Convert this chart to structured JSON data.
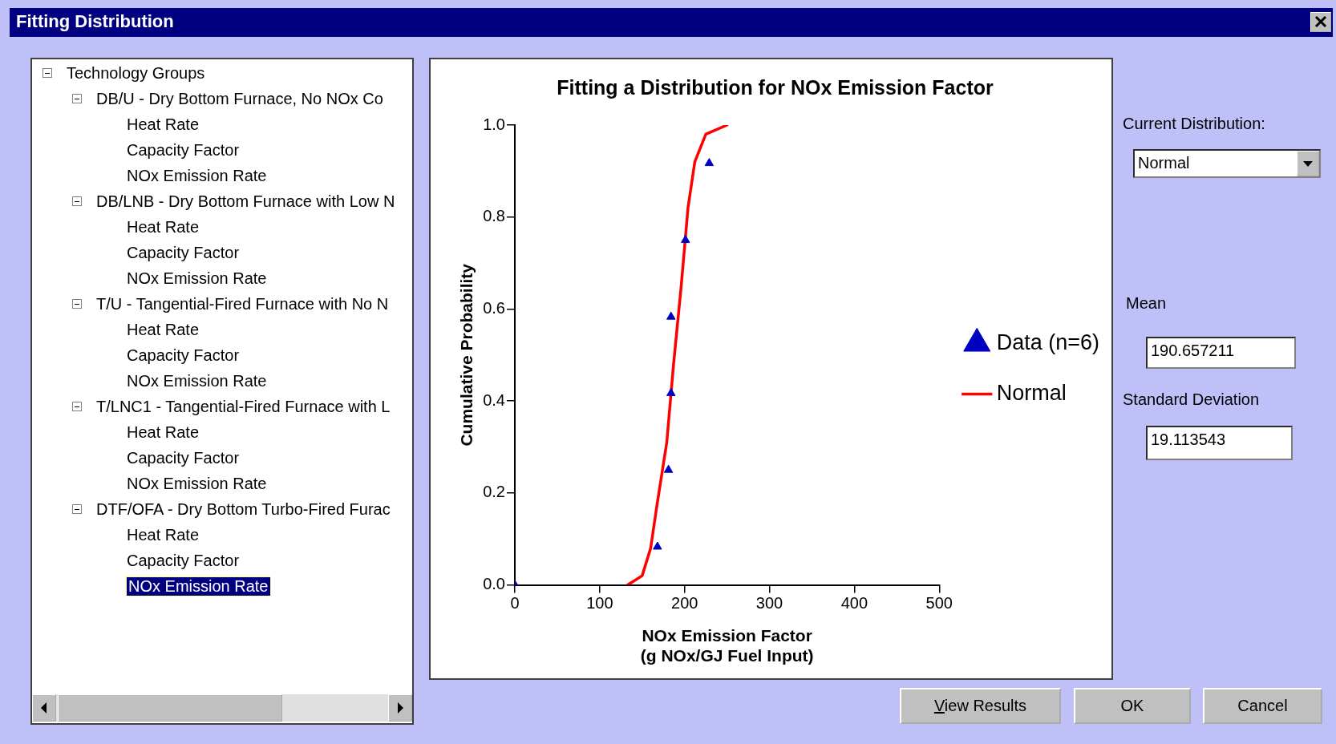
{
  "chart_data": {
    "type": "scatter",
    "title": "Fitting a Distribution for NOx Emission Factor",
    "xlabel": "NOx Emission Factor\n(g NOx/GJ Fuel Input)",
    "ylabel": "Cumulative Probability",
    "xlim": [
      0,
      500
    ],
    "xticks": [
      0,
      100,
      200,
      300,
      400,
      500
    ],
    "ylim": [
      0,
      1
    ],
    "yticks": [
      {
        "value": 0,
        "label": "0.0"
      },
      {
        "value": 0.2,
        "label": "0.2"
      },
      {
        "value": 0.4,
        "label": "0.4"
      },
      {
        "value": 0.6,
        "label": "0.6"
      },
      {
        "value": 0.8,
        "label": "0.8"
      },
      {
        "value": 1,
        "label": "1.0"
      }
    ],
    "grid": false,
    "legend": "right",
    "series": [
      {
        "name": "Data (n=6)",
        "type": "scatter",
        "color": "#0000c0",
        "marker": "triangle",
        "x": [
          0,
          168,
          181,
          184,
          184,
          201,
          229
        ],
        "values": [
          0,
          0.083,
          0.25,
          0.417,
          0.583,
          0.75,
          0.917
        ]
      },
      {
        "name": "Normal",
        "type": "line",
        "color": "#ff0000",
        "marker": "none",
        "x": [
          133,
          150,
          160,
          168,
          179,
          187,
          196,
          204,
          212,
          225,
          250
        ],
        "values": [
          0,
          0.02,
          0.08,
          0.18,
          0.31,
          0.48,
          0.65,
          0.82,
          0.92,
          0.98,
          1
        ]
      }
    ],
    "annotations": [
      "Fitting Distribution",
      "Technology Groups",
      "DB/U - Dry Bottom Furnace,  No NOx Co",
      "Heat Rate",
      "Capacity Factor",
      "NOx Emission Rate",
      "DB/LNB - Dry Bottom Furnace with Low N",
      "Heat Rate",
      "Capacity Factor",
      "NOx Emission Rate",
      "T/U - Tangential-Fired Furnace with No N",
      "Heat Rate",
      "Capacity Factor",
      "NOx Emission Rate",
      "T/LNC1 - Tangential-Fired Furnace with L",
      "Heat Rate",
      "Capacity Factor",
      "NOx Emission Rate",
      "DTF/OFA - Dry Bottom Turbo-Fired Furac",
      "Heat Rate",
      "Capacity Factor",
      "NOx Emission Rate",
      "Current Distribution:",
      "Normal",
      "Mean",
      "190.657211",
      "Standard Deviation",
      "19.113543",
      "View Results",
      "OK",
      "Cancel"
    ]
  }
}
